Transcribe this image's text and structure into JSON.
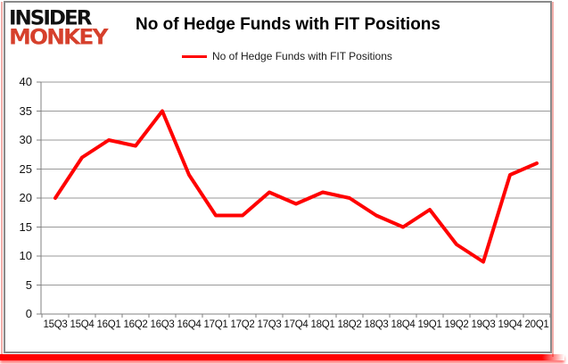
{
  "logo": {
    "line1": "INSIDER",
    "line2": "MONKEY"
  },
  "header": {
    "title": "No of Hedge Funds with FIT Positions"
  },
  "legend": {
    "label": "No of Hedge Funds with FIT Positions"
  },
  "chart_data": {
    "type": "line",
    "title": "No of Hedge Funds with FIT Positions",
    "categories": [
      "15Q3",
      "15Q4",
      "16Q1",
      "16Q2",
      "16Q3",
      "16Q4",
      "17Q1",
      "17Q2",
      "17Q3",
      "17Q4",
      "18Q1",
      "18Q2",
      "18Q3",
      "18Q4",
      "19Q1",
      "19Q2",
      "19Q3",
      "19Q4",
      "20Q1"
    ],
    "series": [
      {
        "name": "No of Hedge Funds with FIT Positions",
        "color": "#ff0000",
        "values": [
          20,
          27,
          30,
          29,
          35,
          24,
          17,
          17,
          21,
          19,
          21,
          20,
          17,
          15,
          18,
          12,
          9,
          24,
          26
        ]
      }
    ],
    "xlabel": "",
    "ylabel": "",
    "ylim": [
      0,
      40
    ],
    "yticks": [
      0,
      5,
      10,
      15,
      20,
      25,
      30,
      35,
      40
    ],
    "grid": "horizontal-only",
    "legend_position": "top-center"
  },
  "colors": {
    "series_red": "#ff0000",
    "logo_red": "#d6402c",
    "grid_gray": "#999999",
    "axis_gray": "#808080",
    "frame_gray": "#8a8a8a",
    "pink_border": "#f2aeaa",
    "bottom_bar_red": "#ff0000",
    "background": "#ffffff",
    "text_black": "#000000"
  }
}
